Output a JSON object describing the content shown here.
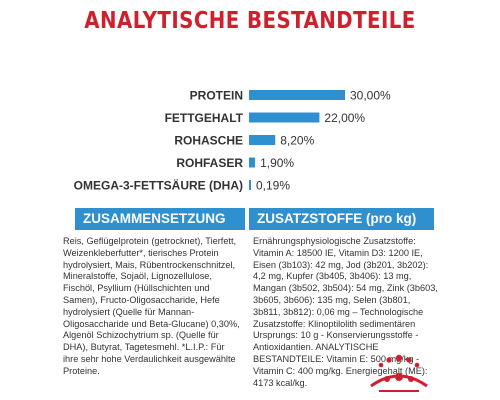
{
  "page": {
    "title": "ANALYTISCHE BESTANDTEILE",
    "logo_color": "#d11f2e",
    "accent_color": "#2f90d0"
  },
  "chart_data": {
    "type": "bar",
    "orientation": "horizontal",
    "categories": [
      "PROTEIN",
      "FETTGEHALT",
      "ROHASCHE",
      "ROHFASER",
      "OMEGA-3-FETTSÄURE (DHA)"
    ],
    "values": [
      30.0,
      22.0,
      8.2,
      1.9,
      0.19
    ],
    "value_labels": [
      "30,00%",
      "22,00%",
      "8,20%",
      "1,90%",
      "0,19%"
    ],
    "xlim": [
      0,
      30
    ],
    "bar_color": "#2f90d0",
    "grid": false
  },
  "sections": {
    "composition": {
      "header": "ZUSAMMENSETZUNG",
      "text": "Reis, Geflügelprotein (getrocknet), Tierfett, Weizenkleberfutter*, tierisches Protein hydrolysiert, Mais, Rübentrockenschnitzel, Mineralstoffe, Sojaöl, Lignozellulose, Fischöl, Psyllium (Hüllschichten und Samen), Fructo-Oligosaccharide, Hefe hydrolysiert (Quelle für Mannan-Oligosaccharide und Beta-Glucane) 0,30%, Algenöl Schizochytrium sp. (Quelle für DHA), Butyrat, Tagetesmehl. *L.I.P.: Für ihre sehr hohe Verdaulichkeit ausgewählte Proteine."
    },
    "additives": {
      "header": "ZUSATZSTOFFE (pro kg)",
      "text": "Ernährungsphysiologische Zusatzstoffe: Vitamin A: 18500 IE, Vitamin D3: 1200 IE, Eisen (3b103): 42 mg, Jod (3b201, 3b202): 4,2 mg, Kupfer (3b405, 3b406): 13 mg, Mangan (3b502, 3b504): 54 mg, Zink (3b603, 3b605, 3b606): 135 mg, Selen (3b801, 3b811, 3b812): 0,06 mg – Technologische Zusatzstoffe: Klinoptilolith sedimentären Ursprungs: 10 g - Konservierungsstoffe - Antioxidantien. ANALYTISCHE BESTANDTEILE: Vitamin E: 500 mg/kg - Vitamin C: 400 mg/kg. Energiegehalt (ME): 4173 kcal/kg."
    }
  }
}
